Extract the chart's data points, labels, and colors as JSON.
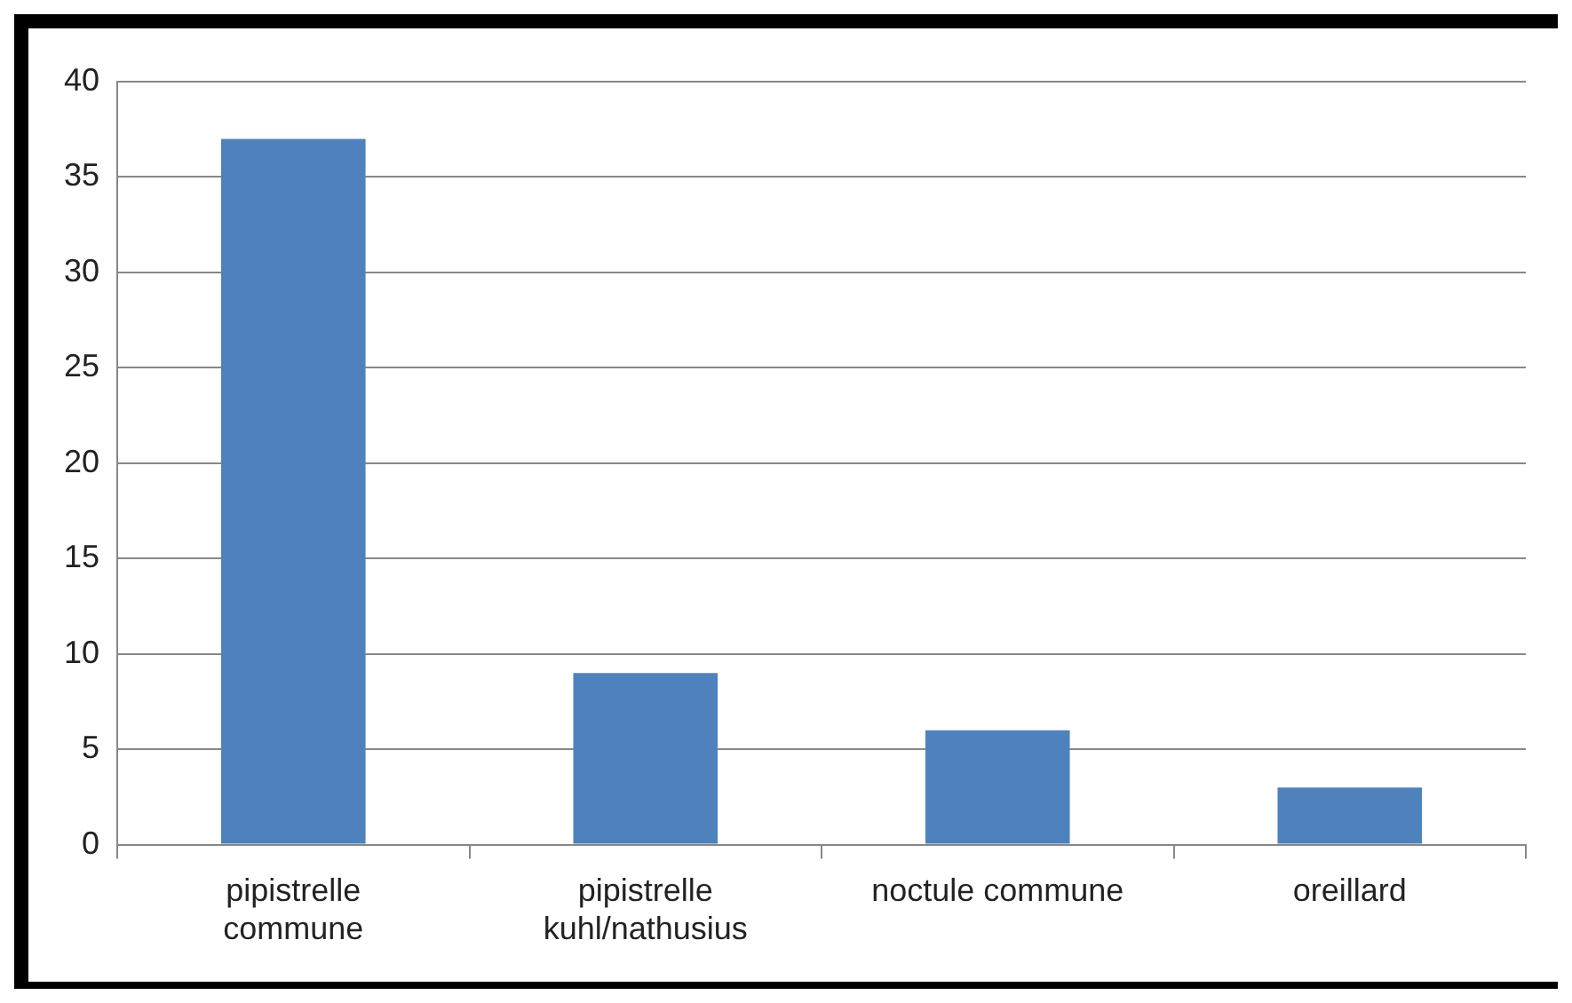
{
  "chart_data": {
    "type": "bar",
    "categories": [
      "pipistrelle commune",
      "pipistrelle kuhl/nathusius",
      "noctule commune",
      "oreillard"
    ],
    "values": [
      37,
      9,
      6,
      3
    ],
    "color": "#4f81bd",
    "ylim": [
      0,
      40
    ],
    "yticks": [
      0,
      5,
      10,
      15,
      20,
      25,
      30,
      35,
      40
    ],
    "grid": "y"
  }
}
